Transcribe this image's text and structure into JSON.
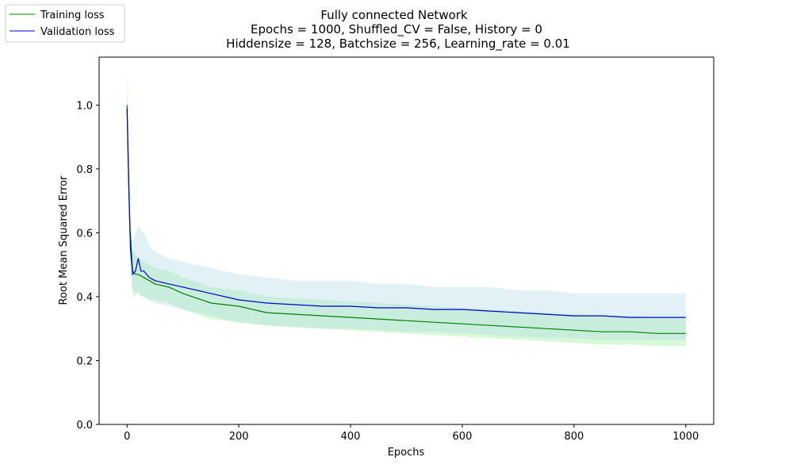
{
  "chart_data": {
    "type": "line",
    "title_lines": [
      "Fully connected Network",
      "Epochs = 1000, Shuffled_CV = False, History = 0",
      "Hiddensize = 128, Batchsize = 256, Learning_rate = 0.01"
    ],
    "xlabel": "Epochs",
    "ylabel": "Root Mean Squared Error",
    "xlim": [
      -50,
      1050
    ],
    "ylim": [
      0.0,
      1.15
    ],
    "xticks": [
      0,
      200,
      400,
      600,
      800,
      1000
    ],
    "yticks": [
      0.0,
      0.2,
      0.4,
      0.6,
      0.8,
      1.0
    ],
    "xtick_labels": [
      "0",
      "200",
      "400",
      "600",
      "800",
      "1000"
    ],
    "ytick_labels": [
      "0.0",
      "0.2",
      "0.4",
      "0.6",
      "0.8",
      "1.0"
    ],
    "grid": false,
    "legend_position": "top-left",
    "series": [
      {
        "name": "Training loss",
        "color": "#008000",
        "band_color": "#90ee90",
        "x": [
          0,
          5,
          10,
          15,
          20,
          30,
          40,
          50,
          75,
          100,
          150,
          200,
          250,
          300,
          350,
          400,
          450,
          500,
          550,
          600,
          650,
          700,
          750,
          800,
          850,
          900,
          950,
          1000
        ],
        "y": [
          1.0,
          0.62,
          0.48,
          0.47,
          0.47,
          0.46,
          0.45,
          0.44,
          0.43,
          0.41,
          0.38,
          0.37,
          0.35,
          0.345,
          0.34,
          0.335,
          0.33,
          0.325,
          0.32,
          0.315,
          0.31,
          0.305,
          0.3,
          0.295,
          0.29,
          0.29,
          0.285,
          0.285
        ],
        "band_lower": [
          0.92,
          0.55,
          0.42,
          0.41,
          0.41,
          0.4,
          0.39,
          0.39,
          0.38,
          0.36,
          0.33,
          0.32,
          0.31,
          0.305,
          0.3,
          0.295,
          0.29,
          0.285,
          0.28,
          0.275,
          0.27,
          0.265,
          0.26,
          0.255,
          0.25,
          0.25,
          0.245,
          0.245
        ],
        "band_upper": [
          1.11,
          0.68,
          0.54,
          0.53,
          0.52,
          0.51,
          0.5,
          0.49,
          0.48,
          0.46,
          0.43,
          0.42,
          0.4,
          0.395,
          0.39,
          0.385,
          0.38,
          0.375,
          0.37,
          0.365,
          0.36,
          0.355,
          0.35,
          0.345,
          0.34,
          0.34,
          0.335,
          0.335
        ]
      },
      {
        "name": "Validation loss",
        "color": "#0000cc",
        "band_color": "#add8e6",
        "x": [
          0,
          3,
          6,
          10,
          15,
          20,
          25,
          30,
          40,
          50,
          75,
          100,
          150,
          200,
          250,
          300,
          350,
          400,
          450,
          500,
          550,
          600,
          650,
          700,
          750,
          800,
          850,
          900,
          950,
          1000
        ],
        "y": [
          0.99,
          0.75,
          0.55,
          0.47,
          0.48,
          0.52,
          0.48,
          0.48,
          0.46,
          0.45,
          0.44,
          0.43,
          0.41,
          0.39,
          0.38,
          0.375,
          0.37,
          0.37,
          0.365,
          0.365,
          0.36,
          0.36,
          0.355,
          0.35,
          0.345,
          0.34,
          0.34,
          0.335,
          0.335,
          0.335
        ],
        "band_lower": [
          0.95,
          0.7,
          0.48,
          0.4,
          0.4,
          0.42,
          0.4,
          0.4,
          0.39,
          0.38,
          0.37,
          0.36,
          0.34,
          0.32,
          0.31,
          0.305,
          0.3,
          0.3,
          0.295,
          0.29,
          0.29,
          0.285,
          0.28,
          0.275,
          0.27,
          0.27,
          0.265,
          0.265,
          0.265,
          0.265
        ],
        "band_upper": [
          1.03,
          0.82,
          0.62,
          0.56,
          0.6,
          0.62,
          0.61,
          0.6,
          0.56,
          0.54,
          0.52,
          0.51,
          0.49,
          0.47,
          0.46,
          0.45,
          0.45,
          0.45,
          0.44,
          0.44,
          0.43,
          0.43,
          0.43,
          0.42,
          0.42,
          0.41,
          0.41,
          0.41,
          0.41,
          0.41
        ]
      }
    ]
  }
}
